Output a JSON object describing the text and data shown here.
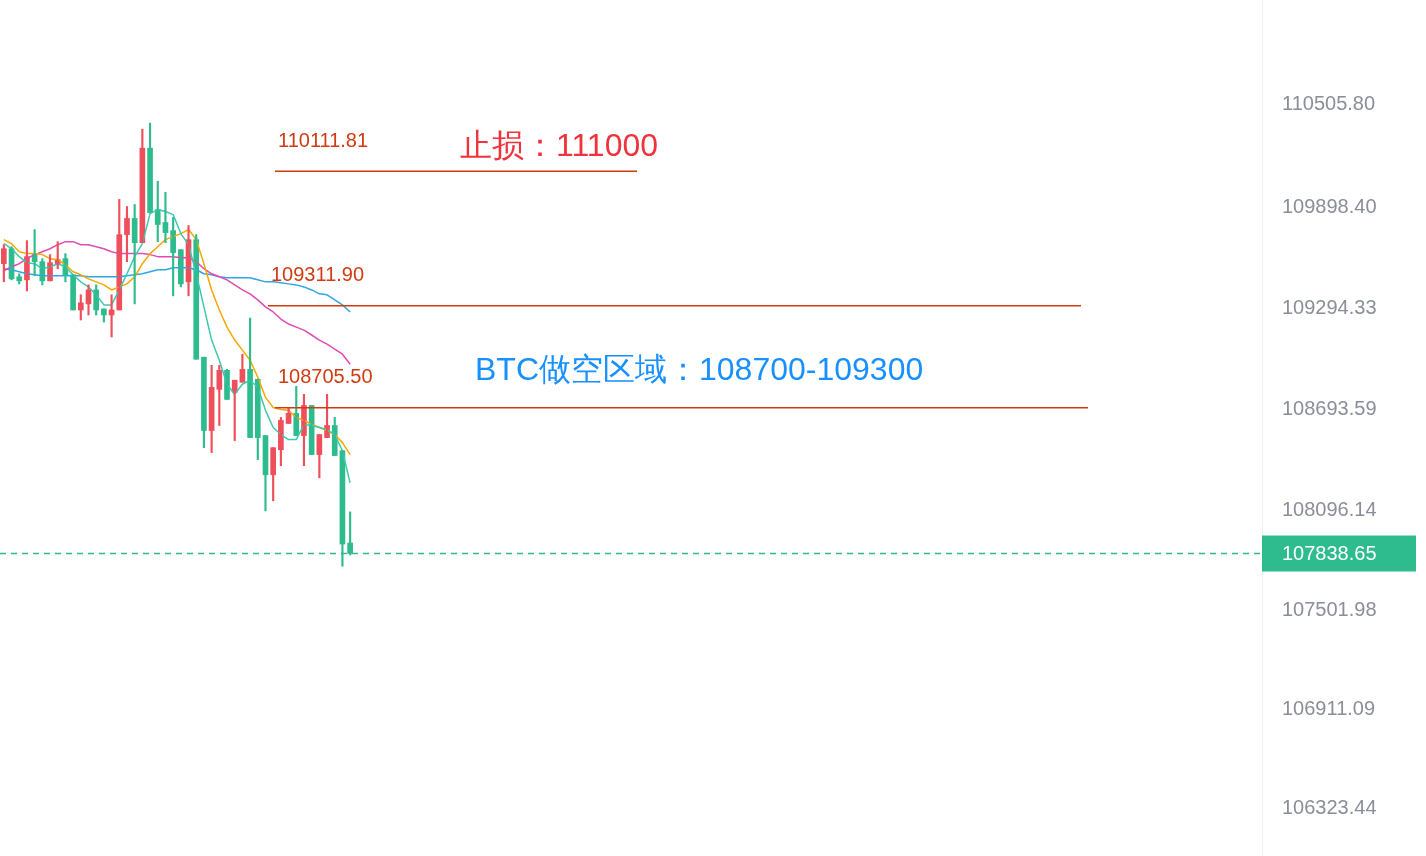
{
  "chart_data": {
    "type": "candlestick",
    "categories": [
      null,
      null,
      null,
      null,
      null,
      null,
      null,
      null,
      null,
      null,
      null,
      null,
      null,
      null,
      null,
      null,
      null,
      null,
      null,
      null,
      null,
      null,
      null,
      null,
      null,
      null,
      null,
      null,
      null,
      null,
      null,
      null,
      null,
      null,
      null,
      null,
      null,
      null,
      null,
      null,
      null,
      null,
      null,
      null,
      null,
      null,
      null,
      null,
      null,
      null,
      null,
      null,
      null,
      null,
      null,
      null,
      null,
      null,
      null,
      null,
      null,
      null,
      null,
      null,
      null,
      null,
      null,
      null,
      null,
      null,
      null,
      null,
      null,
      null,
      null,
      null,
      null,
      null,
      null,
      null,
      null,
      null,
      null,
      null,
      null,
      null,
      null,
      null,
      null,
      null,
      null,
      null,
      null,
      null,
      null,
      null,
      null,
      null,
      null,
      null,
      null,
      null,
      null,
      null,
      null,
      null,
      null,
      null,
      null,
      null,
      null,
      null,
      null,
      null,
      null,
      null,
      null,
      null,
      null,
      null,
      null,
      null,
      null,
      null,
      null,
      null,
      null,
      null,
      null,
      null,
      null,
      null,
      null,
      null,
      null,
      null,
      null,
      null,
      null,
      null,
      null,
      null,
      null,
      null,
      null,
      null,
      null,
      null,
      null,
      null,
      null,
      null,
      null,
      null,
      null,
      null,
      null,
      null,
      null,
      null,
      null,
      null,
      null,
      null
    ],
    "ohlc": [
      [
        109562,
        109675,
        109454,
        109651
      ],
      [
        109651,
        109663,
        109466,
        109472
      ],
      [
        109484,
        109502,
        109442,
        109460
      ],
      [
        109466,
        109699,
        109400,
        109604
      ],
      [
        109622,
        109765,
        109490,
        109574
      ],
      [
        109574,
        109592,
        109436,
        109460
      ],
      [
        109460,
        109616,
        109460,
        109568
      ],
      [
        109556,
        109693,
        109532,
        109586
      ],
      [
        109592,
        109622,
        109454,
        109496
      ],
      [
        109496,
        109496,
        109287,
        109287
      ],
      [
        109287,
        109377,
        109227,
        109329
      ],
      [
        109323,
        109436,
        109257,
        109406
      ],
      [
        109406,
        109436,
        109257,
        109287
      ],
      [
        109293,
        109293,
        109215,
        109257
      ],
      [
        109257,
        109377,
        109126,
        109287
      ],
      [
        109287,
        109944,
        109287,
        109735
      ],
      [
        109735,
        109902,
        109574,
        109831
      ],
      [
        109831,
        109914,
        109323,
        109687
      ],
      [
        109687,
        110362,
        109687,
        110249
      ],
      [
        110249,
        110398,
        109866,
        109866
      ],
      [
        109884,
        110052,
        109693,
        109795
      ],
      [
        109807,
        109986,
        109687,
        109747
      ],
      [
        109759,
        109837,
        109371,
        109628
      ],
      [
        109645,
        109645,
        109424,
        109442
      ],
      [
        109454,
        109789,
        109371,
        109705
      ],
      [
        109705,
        109735,
        108994,
        108994
      ],
      [
        109006,
        109006,
        108468,
        108570
      ],
      [
        108570,
        108958,
        108439,
        108827
      ],
      [
        108815,
        108958,
        108600,
        108928
      ],
      [
        108928,
        108934,
        108755,
        108755
      ],
      [
        108797,
        108869,
        108510,
        108869
      ],
      [
        108857,
        109024,
        108857,
        108934
      ],
      [
        108934,
        109239,
        108528,
        108528
      ],
      [
        108875,
        108875,
        108397,
        108528
      ],
      [
        108540,
        108540,
        108092,
        108307
      ],
      [
        108307,
        108468,
        108152,
        108468
      ],
      [
        108456,
        108648,
        108361,
        108630
      ],
      [
        108612,
        108707,
        108612,
        108672
      ],
      [
        108672,
        108833,
        108540,
        108540
      ],
      [
        108540,
        108785,
        108361,
        108719
      ],
      [
        108719,
        108719,
        108427,
        108427
      ],
      [
        108427,
        108546,
        108289,
        108546
      ],
      [
        108528,
        108785,
        108528,
        108600
      ],
      [
        108600,
        108648,
        108421,
        108421
      ],
      [
        108450,
        108450,
        107763,
        107895
      ],
      [
        107901,
        108086,
        107830,
        107839
      ],
      null,
      null,
      null,
      null,
      null,
      null,
      null,
      null,
      null,
      null,
      null,
      null,
      null,
      null,
      null,
      null,
      null,
      null,
      null,
      null,
      null,
      null,
      null,
      null,
      null,
      null,
      null,
      null,
      null,
      null,
      null,
      null,
      null,
      null,
      null,
      null,
      null,
      null,
      null,
      null,
      null,
      null,
      null,
      null,
      null,
      null,
      null,
      null,
      null,
      null,
      null,
      null,
      null,
      null,
      null,
      null,
      null,
      null,
      null,
      null,
      null,
      null,
      null,
      null,
      null,
      null,
      null,
      null,
      null,
      null,
      null,
      null,
      null,
      null,
      null,
      null,
      null,
      null,
      null,
      null,
      null,
      null,
      null,
      null,
      null,
      null,
      null,
      null,
      null,
      null,
      null,
      null,
      null,
      null,
      null,
      null,
      null,
      null,
      null,
      null,
      null,
      null,
      null,
      null,
      null,
      null,
      null,
      null,
      null,
      null,
      null,
      null,
      null,
      null,
      null,
      null,
      null,
      null
    ],
    "colors": [
      "#ef4f5b",
      "#2ebc8e",
      "#2ebc8e",
      "#ef4f5b",
      "#2ebc8e",
      "#2ebc8e",
      "#ef4f5b",
      "#ef4f5b",
      "#2ebc8e",
      "#2ebc8e",
      "#ef4f5b",
      "#ef4f5b",
      "#2ebc8e",
      "#2ebc8e",
      "#ef4f5b",
      "#ef4f5b",
      "#ef4f5b",
      "#2ebc8e",
      "#ef4f5b",
      "#2ebc8e",
      "#2ebc8e",
      "#2ebc8e",
      "#2ebc8e",
      "#2ebc8e",
      "#ef4f5b",
      "#2ebc8e",
      "#2ebc8e",
      "#ef4f5b",
      "#ef4f5b",
      "#2ebc8e",
      "#ef4f5b",
      "#ef4f5b",
      "#2ebc8e",
      "#2ebc8e",
      "#2ebc8e",
      "#ef4f5b",
      "#ef4f5b",
      "#ef4f5b",
      "#2ebc8e",
      "#ef4f5b",
      "#2ebc8e",
      "#ef4f5b",
      "#ef4f5b",
      "#2ebc8e",
      "#2ebc8e",
      "#2ebc8e",
      null,
      null,
      null,
      null,
      null,
      null,
      null,
      null,
      null,
      null,
      null,
      null,
      null,
      null,
      null,
      null,
      null,
      null,
      null,
      null,
      null,
      null,
      null,
      null,
      null,
      null,
      null,
      null,
      null,
      null,
      null,
      null,
      null,
      null,
      null,
      null,
      null,
      null,
      null,
      null,
      null,
      null,
      null,
      null,
      null,
      null,
      null,
      null,
      null,
      null,
      null,
      null,
      null,
      null,
      null,
      null,
      null,
      null,
      null,
      null,
      null,
      null,
      null,
      null,
      null,
      null,
      null,
      null,
      null,
      null,
      null,
      null,
      null,
      null,
      null,
      null,
      null,
      null,
      null,
      null,
      null,
      null,
      null,
      null,
      null,
      null,
      null,
      null,
      null,
      null,
      null,
      null,
      null,
      null,
      null,
      null,
      null,
      null,
      null,
      null,
      null,
      null,
      null,
      null,
      null,
      null,
      null,
      null,
      null,
      null,
      null,
      null,
      null,
      null,
      null,
      null,
      null,
      null
    ],
    "series": [
      {
        "type": "line",
        "color": "#3cc9b0",
        "values": [
          109681,
          109651,
          109604,
          109568,
          109562,
          109532,
          109544,
          109562,
          109544,
          109496,
          109454,
          109424,
          109377,
          109317,
          109317,
          109406,
          109502,
          109604,
          109681,
          109860,
          109884,
          109872,
          109854,
          109741,
          109675,
          109502,
          109305,
          109108,
          108988,
          108845,
          108785,
          108845,
          108869,
          108827,
          108690,
          108588,
          108546,
          108516,
          108516,
          108606,
          108600,
          108588,
          108576,
          108546,
          108450,
          108259,
          null,
          null,
          null,
          null,
          null,
          null,
          null,
          null,
          null,
          null,
          null,
          null,
          null,
          null,
          null,
          null,
          null,
          null,
          null,
          null,
          null,
          null,
          null,
          null,
          null,
          null,
          null,
          null,
          null,
          null,
          null,
          null,
          null,
          null,
          null,
          null,
          null,
          null,
          null,
          null,
          null,
          null,
          null,
          null,
          null,
          null,
          null,
          null,
          null,
          null,
          null,
          null,
          null,
          null,
          null,
          null,
          null,
          null,
          null,
          null,
          null,
          null,
          null,
          null,
          null,
          null,
          null,
          null,
          null,
          null,
          null,
          null,
          null,
          null,
          null,
          null,
          null,
          null,
          null,
          null,
          null,
          null,
          null,
          null,
          null,
          null,
          null,
          null,
          null,
          null,
          null,
          null,
          null,
          null,
          null,
          null,
          null,
          null,
          null,
          null,
          null,
          null,
          null,
          null,
          null,
          null,
          null,
          null,
          null,
          null,
          null,
          null,
          null,
          null,
          null,
          null,
          null,
          null
        ]
      },
      {
        "type": "line",
        "color": "#f5a800",
        "values": [
          109705,
          109681,
          109633,
          109622,
          109622,
          109616,
          109592,
          109586,
          109556,
          109514,
          109496,
          109472,
          109454,
          109436,
          109406,
          109424,
          109442,
          109484,
          109562,
          109622,
          109663,
          109705,
          109723,
          109741,
          109765,
          109705,
          109562,
          109406,
          109287,
          109185,
          109108,
          109048,
          108988,
          108887,
          108767,
          108707,
          108695,
          108690,
          108648,
          108630,
          108606,
          108588,
          108570,
          108546,
          108498,
          108427,
          null,
          null,
          null,
          null,
          null,
          null,
          null,
          null,
          null,
          null,
          null,
          null,
          null,
          null,
          null,
          null,
          null,
          null,
          null,
          null,
          null,
          null,
          null,
          null,
          null,
          null,
          null,
          null,
          null,
          null,
          null,
          null,
          null,
          null,
          null,
          null,
          null,
          null,
          null,
          null,
          null,
          null,
          null,
          null,
          null,
          null,
          null,
          null,
          null,
          null,
          null,
          null,
          null,
          null,
          null,
          null,
          null,
          null,
          null,
          null,
          null,
          null,
          null,
          null,
          null,
          null,
          null,
          null,
          null,
          null,
          null,
          null,
          null,
          null,
          null,
          null,
          null,
          null,
          null,
          null,
          null,
          null,
          null,
          null,
          null,
          null,
          null,
          null,
          null,
          null,
          null,
          null,
          null,
          null,
          null,
          null,
          null,
          null,
          null,
          null,
          null,
          null,
          null,
          null,
          null,
          null,
          null,
          null,
          null,
          null,
          null,
          null,
          null,
          null,
          null,
          null,
          null,
          null
        ]
      },
      {
        "type": "line",
        "color": "#e24bb4",
        "values": [
          109520,
          109544,
          109562,
          109592,
          109616,
          109633,
          109651,
          109675,
          109693,
          109693,
          109675,
          109675,
          109663,
          109651,
          109633,
          109622,
          109622,
          109622,
          109622,
          109616,
          109604,
          109604,
          109604,
          109598,
          109598,
          109574,
          109532,
          109502,
          109484,
          109466,
          109436,
          109406,
          109383,
          109347,
          109305,
          109275,
          109233,
          109203,
          109185,
          109167,
          109138,
          109108,
          109084,
          109054,
          109024,
          108964,
          null,
          null,
          null,
          null,
          null,
          null,
          null,
          null,
          null,
          null,
          null,
          null,
          null,
          null,
          null,
          null,
          null,
          null,
          null,
          null,
          null,
          null,
          null,
          null,
          null,
          null,
          null,
          null,
          null,
          null,
          null,
          null,
          null,
          null,
          null,
          null,
          null,
          null,
          null,
          null,
          null,
          null,
          null,
          null,
          null,
          null,
          null,
          null,
          null,
          null,
          null,
          null,
          null,
          null,
          null,
          null,
          null,
          null,
          null,
          null,
          null,
          null,
          null,
          null,
          null,
          null,
          null,
          null,
          null,
          null,
          null,
          null,
          null,
          null,
          null,
          null,
          null,
          null,
          null,
          null,
          null,
          null,
          null,
          null,
          null,
          null,
          null,
          null,
          null,
          null,
          null,
          null,
          null,
          null,
          null,
          null,
          null,
          null,
          null,
          null,
          null,
          null,
          null,
          null,
          null,
          null,
          null,
          null,
          null,
          null,
          null,
          null,
          null,
          null,
          null,
          null,
          null,
          null
        ]
      },
      {
        "type": "line",
        "color": "#2fa7e4",
        "values": [
          109532,
          109526,
          109514,
          109502,
          109496,
          109490,
          109490,
          109490,
          109490,
          109490,
          109490,
          109484,
          109484,
          109484,
          109484,
          109484,
          109490,
          109496,
          109502,
          109514,
          109526,
          109526,
          109538,
          109538,
          109538,
          109526,
          109502,
          109496,
          109484,
          109478,
          109478,
          109478,
          109478,
          109466,
          109454,
          109454,
          109448,
          109442,
          109436,
          109424,
          109406,
          109383,
          109377,
          109347,
          109317,
          109275,
          null,
          null,
          null,
          null,
          null,
          null,
          null,
          null,
          null,
          null,
          null,
          null,
          null,
          null,
          null,
          null,
          null,
          null,
          null,
          null,
          null,
          null,
          null,
          null,
          null,
          null,
          null,
          null,
          null,
          null,
          null,
          null,
          null,
          null,
          null,
          null,
          null,
          null,
          null,
          null,
          null,
          null,
          null,
          null,
          null,
          null,
          null,
          null,
          null,
          null,
          null,
          null,
          null,
          null,
          null,
          null,
          null,
          null,
          null,
          null,
          null,
          null,
          null,
          null,
          null,
          null,
          null,
          null,
          null,
          null,
          null,
          null,
          null,
          null,
          null,
          null,
          null,
          null,
          null,
          null,
          null,
          null,
          null,
          null,
          null,
          null,
          null,
          null,
          null,
          null,
          null,
          null,
          null,
          null,
          null,
          null,
          null,
          null,
          null,
          null,
          null,
          null,
          null,
          null,
          null,
          null,
          null,
          null,
          null,
          null,
          null,
          null,
          null,
          null,
          null,
          null,
          null,
          null
        ]
      }
    ],
    "ylim": [
      106040,
      111130
    ],
    "yticks": [
      {
        "value": 110505.8,
        "label": "110505.80"
      },
      {
        "value": 109898.4,
        "label": "109898.40"
      },
      {
        "value": 109294.33,
        "label": "109294.33"
      },
      {
        "value": 108693.59,
        "label": "108693.59"
      },
      {
        "value": 108096.14,
        "label": "108096.14"
      },
      {
        "value": 107501.98,
        "label": "107501.98"
      },
      {
        "value": 106911.09,
        "label": "106911.09"
      },
      {
        "value": 106323.44,
        "label": "106323.44"
      }
    ],
    "ref_lines": [
      {
        "axis": "y",
        "value": 110111.81,
        "label": "110111.81",
        "color": "#d23a12"
      },
      {
        "axis": "y",
        "value": 109311.9,
        "label": "109311.90",
        "color": "#d23a12"
      },
      {
        "axis": "y",
        "value": 108705.5,
        "label": "108705.50",
        "color": "#d23a12"
      },
      {
        "axis": "y",
        "value": 107838.65,
        "label": "107838.65",
        "color": "#2ebc8e",
        "line_style": "dashed"
      }
    ],
    "annotations": [
      "止损：111000",
      "BTC做空区域：108700-109300"
    ],
    "marker": "none",
    "line_style": "solid",
    "legend": false,
    "grid": false,
    "tick_labels": "y"
  }
}
